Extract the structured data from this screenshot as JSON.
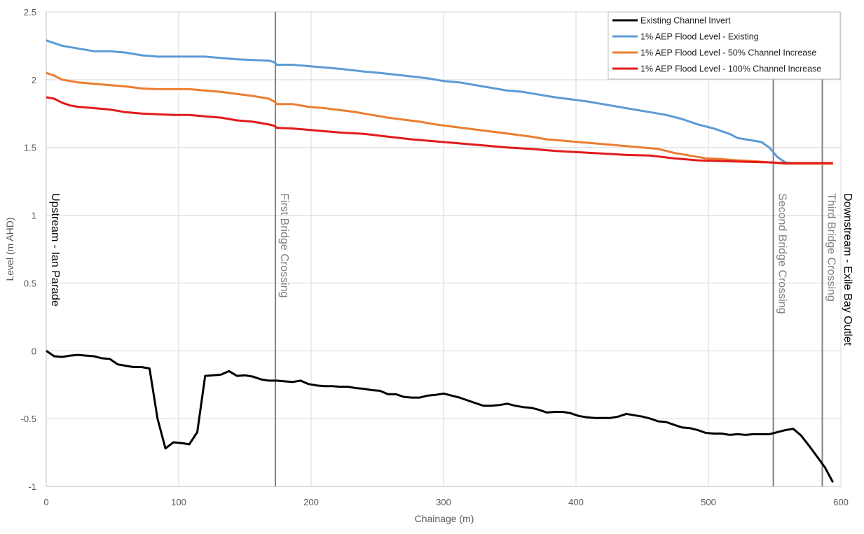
{
  "chart_data": {
    "type": "line",
    "title": "",
    "xlabel": "Chainage (m)",
    "ylabel": "Level (m AHD)",
    "xlim": [
      0,
      600
    ],
    "ylim": [
      -1,
      2.5
    ],
    "xticks": [
      "0",
      "100",
      "200",
      "300",
      "400",
      "500",
      "600"
    ],
    "yticks": [
      "-1",
      "-0.5",
      "0",
      "0.5",
      "1",
      "1.5",
      "2",
      "2.5"
    ],
    "grid": true,
    "legend_position": "top-right",
    "series": [
      {
        "name": "Existing Channel Invert",
        "color": "#000000",
        "points": [
          [
            0,
            0
          ],
          [
            6,
            -0.04
          ],
          [
            12,
            -0.045
          ],
          [
            18,
            -0.035
          ],
          [
            24,
            -0.03
          ],
          [
            30,
            -0.035
          ],
          [
            36,
            -0.04
          ],
          [
            42,
            -0.055
          ],
          [
            48,
            -0.06
          ],
          [
            54,
            -0.1
          ],
          [
            60,
            -0.11
          ],
          [
            66,
            -0.12
          ],
          [
            72,
            -0.12
          ],
          [
            78,
            -0.13
          ],
          [
            84,
            -0.5
          ],
          [
            90,
            -0.72
          ],
          [
            96,
            -0.675
          ],
          [
            102,
            -0.68
          ],
          [
            108,
            -0.69
          ],
          [
            114,
            -0.6
          ],
          [
            120,
            -0.185
          ],
          [
            126,
            -0.18
          ],
          [
            132,
            -0.175
          ],
          [
            138,
            -0.15
          ],
          [
            144,
            -0.185
          ],
          [
            150,
            -0.18
          ],
          [
            156,
            -0.19
          ],
          [
            162,
            -0.21
          ],
          [
            168,
            -0.22
          ],
          [
            174,
            -0.22
          ],
          [
            180,
            -0.225
          ],
          [
            186,
            -0.23
          ],
          [
            192,
            -0.22
          ],
          [
            198,
            -0.245
          ],
          [
            204,
            -0.255
          ],
          [
            210,
            -0.26
          ],
          [
            216,
            -0.26
          ],
          [
            222,
            -0.265
          ],
          [
            228,
            -0.265
          ],
          [
            234,
            -0.275
          ],
          [
            240,
            -0.28
          ],
          [
            246,
            -0.29
          ],
          [
            252,
            -0.295
          ],
          [
            258,
            -0.32
          ],
          [
            264,
            -0.32
          ],
          [
            270,
            -0.34
          ],
          [
            276,
            -0.345
          ],
          [
            282,
            -0.345
          ],
          [
            288,
            -0.33
          ],
          [
            294,
            -0.325
          ],
          [
            300,
            -0.315
          ],
          [
            306,
            -0.33
          ],
          [
            312,
            -0.345
          ],
          [
            318,
            -0.365
          ],
          [
            324,
            -0.385
          ],
          [
            330,
            -0.405
          ],
          [
            336,
            -0.405
          ],
          [
            342,
            -0.4
          ],
          [
            348,
            -0.39
          ],
          [
            354,
            -0.405
          ],
          [
            360,
            -0.415
          ],
          [
            366,
            -0.42
          ],
          [
            372,
            -0.435
          ],
          [
            378,
            -0.455
          ],
          [
            384,
            -0.45
          ],
          [
            390,
            -0.45
          ],
          [
            396,
            -0.46
          ],
          [
            402,
            -0.48
          ],
          [
            408,
            -0.49
          ],
          [
            414,
            -0.495
          ],
          [
            420,
            -0.495
          ],
          [
            426,
            -0.495
          ],
          [
            432,
            -0.485
          ],
          [
            438,
            -0.465
          ],
          [
            444,
            -0.475
          ],
          [
            450,
            -0.485
          ],
          [
            456,
            -0.5
          ],
          [
            462,
            -0.52
          ],
          [
            468,
            -0.525
          ],
          [
            474,
            -0.545
          ],
          [
            480,
            -0.565
          ],
          [
            486,
            -0.57
          ],
          [
            492,
            -0.585
          ],
          [
            498,
            -0.605
          ],
          [
            504,
            -0.61
          ],
          [
            510,
            -0.61
          ],
          [
            516,
            -0.62
          ],
          [
            522,
            -0.615
          ],
          [
            528,
            -0.62
          ],
          [
            534,
            -0.615
          ],
          [
            540,
            -0.615
          ],
          [
            546,
            -0.615
          ],
          [
            552,
            -0.6
          ],
          [
            558,
            -0.585
          ],
          [
            564,
            -0.575
          ],
          [
            570,
            -0.625
          ],
          [
            576,
            -0.7
          ],
          [
            582,
            -0.78
          ],
          [
            588,
            -0.86
          ],
          [
            594,
            -0.97
          ]
        ]
      },
      {
        "name": "1% AEP Flood Level - Existing",
        "color": "#5b9bd5",
        "points": [
          [
            0,
            2.29
          ],
          [
            6,
            2.27
          ],
          [
            12,
            2.25
          ],
          [
            24,
            2.23
          ],
          [
            36,
            2.21
          ],
          [
            48,
            2.21
          ],
          [
            60,
            2.2
          ],
          [
            72,
            2.18
          ],
          [
            84,
            2.17
          ],
          [
            96,
            2.17
          ],
          [
            108,
            2.17
          ],
          [
            120,
            2.17
          ],
          [
            132,
            2.16
          ],
          [
            144,
            2.15
          ],
          [
            156,
            2.145
          ],
          [
            168,
            2.14
          ],
          [
            172,
            2.13
          ],
          [
            174,
            2.11
          ],
          [
            186,
            2.11
          ],
          [
            198,
            2.1
          ],
          [
            210,
            2.09
          ],
          [
            222,
            2.08
          ],
          [
            240,
            2.06
          ],
          [
            252,
            2.05
          ],
          [
            270,
            2.03
          ],
          [
            288,
            2.01
          ],
          [
            300,
            1.99
          ],
          [
            312,
            1.98
          ],
          [
            324,
            1.96
          ],
          [
            336,
            1.94
          ],
          [
            348,
            1.92
          ],
          [
            360,
            1.91
          ],
          [
            372,
            1.89
          ],
          [
            384,
            1.87
          ],
          [
            396,
            1.855
          ],
          [
            408,
            1.84
          ],
          [
            420,
            1.82
          ],
          [
            432,
            1.8
          ],
          [
            444,
            1.78
          ],
          [
            456,
            1.76
          ],
          [
            468,
            1.74
          ],
          [
            480,
            1.71
          ],
          [
            492,
            1.67
          ],
          [
            504,
            1.64
          ],
          [
            516,
            1.6
          ],
          [
            522,
            1.57
          ],
          [
            534,
            1.55
          ],
          [
            540,
            1.54
          ],
          [
            546,
            1.5
          ],
          [
            552,
            1.43
          ],
          [
            558,
            1.39
          ],
          [
            564,
            1.38
          ],
          [
            576,
            1.38
          ],
          [
            588,
            1.38
          ],
          [
            594,
            1.38
          ]
        ]
      },
      {
        "name": "1% AEP Flood Level - 50% Channel Increase",
        "color": "#ed7d31",
        "points": [
          [
            0,
            2.05
          ],
          [
            6,
            2.03
          ],
          [
            12,
            2.0
          ],
          [
            24,
            1.98
          ],
          [
            36,
            1.97
          ],
          [
            48,
            1.96
          ],
          [
            60,
            1.95
          ],
          [
            72,
            1.935
          ],
          [
            84,
            1.93
          ],
          [
            96,
            1.93
          ],
          [
            108,
            1.93
          ],
          [
            120,
            1.92
          ],
          [
            132,
            1.91
          ],
          [
            144,
            1.895
          ],
          [
            156,
            1.88
          ],
          [
            168,
            1.86
          ],
          [
            172,
            1.84
          ],
          [
            174,
            1.82
          ],
          [
            186,
            1.82
          ],
          [
            198,
            1.8
          ],
          [
            210,
            1.79
          ],
          [
            222,
            1.775
          ],
          [
            234,
            1.76
          ],
          [
            246,
            1.74
          ],
          [
            258,
            1.72
          ],
          [
            270,
            1.705
          ],
          [
            282,
            1.69
          ],
          [
            294,
            1.67
          ],
          [
            306,
            1.655
          ],
          [
            318,
            1.64
          ],
          [
            330,
            1.625
          ],
          [
            342,
            1.61
          ],
          [
            354,
            1.595
          ],
          [
            366,
            1.58
          ],
          [
            378,
            1.56
          ],
          [
            390,
            1.55
          ],
          [
            402,
            1.54
          ],
          [
            414,
            1.53
          ],
          [
            426,
            1.52
          ],
          [
            438,
            1.51
          ],
          [
            450,
            1.5
          ],
          [
            462,
            1.49
          ],
          [
            474,
            1.46
          ],
          [
            486,
            1.44
          ],
          [
            498,
            1.42
          ],
          [
            510,
            1.415
          ],
          [
            522,
            1.405
          ],
          [
            534,
            1.4
          ],
          [
            546,
            1.39
          ],
          [
            558,
            1.38
          ],
          [
            570,
            1.38
          ],
          [
            582,
            1.38
          ],
          [
            594,
            1.38
          ]
        ]
      },
      {
        "name": "1% AEP Flood Level - 100% Channel Increase",
        "color": "#e21b1b",
        "points": [
          [
            0,
            1.87
          ],
          [
            6,
            1.86
          ],
          [
            12,
            1.83
          ],
          [
            18,
            1.81
          ],
          [
            24,
            1.8
          ],
          [
            36,
            1.79
          ],
          [
            48,
            1.78
          ],
          [
            60,
            1.76
          ],
          [
            72,
            1.75
          ],
          [
            84,
            1.745
          ],
          [
            96,
            1.74
          ],
          [
            108,
            1.74
          ],
          [
            120,
            1.73
          ],
          [
            132,
            1.72
          ],
          [
            144,
            1.7
          ],
          [
            156,
            1.69
          ],
          [
            168,
            1.67
          ],
          [
            172,
            1.66
          ],
          [
            174,
            1.645
          ],
          [
            186,
            1.64
          ],
          [
            198,
            1.63
          ],
          [
            210,
            1.62
          ],
          [
            222,
            1.61
          ],
          [
            240,
            1.6
          ],
          [
            258,
            1.58
          ],
          [
            276,
            1.56
          ],
          [
            294,
            1.545
          ],
          [
            312,
            1.53
          ],
          [
            330,
            1.515
          ],
          [
            348,
            1.5
          ],
          [
            366,
            1.49
          ],
          [
            384,
            1.475
          ],
          [
            402,
            1.465
          ],
          [
            420,
            1.455
          ],
          [
            438,
            1.445
          ],
          [
            456,
            1.44
          ],
          [
            474,
            1.42
          ],
          [
            492,
            1.405
          ],
          [
            510,
            1.4
          ],
          [
            528,
            1.395
          ],
          [
            546,
            1.39
          ],
          [
            558,
            1.385
          ],
          [
            570,
            1.385
          ],
          [
            582,
            1.385
          ],
          [
            594,
            1.385
          ]
        ]
      }
    ],
    "vertical_lines": [
      {
        "x": 173,
        "label": "First Bridge Crossing",
        "color": "#808080"
      },
      {
        "x": 549,
        "label": "Second Bridge Crossing",
        "color": "#808080"
      },
      {
        "x": 586,
        "label": "Third Bridge Crossing",
        "color": "#808080"
      }
    ],
    "annotations": [
      {
        "label": "Upstream - Ian Parade",
        "anchor": "left"
      },
      {
        "label": "Downstream - Exile Bay Outlet",
        "anchor": "right"
      }
    ]
  }
}
